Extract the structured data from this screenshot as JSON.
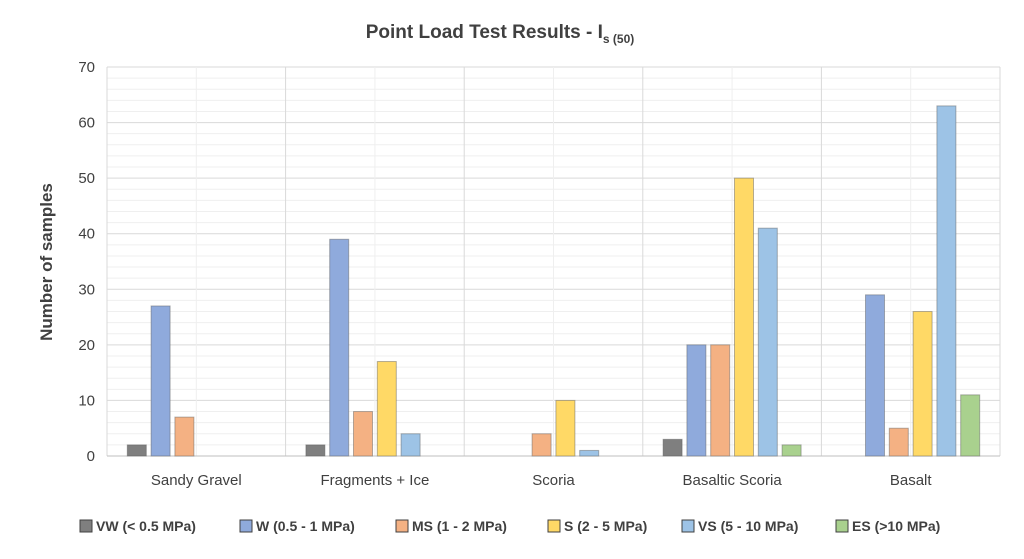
{
  "colors": {
    "VW": "#7f7f7f",
    "W": "#8faadc",
    "MS": "#f4b183",
    "S": "#ffd966",
    "VS": "#9dc3e6",
    "ES": "#a9d18e",
    "grid": "#d9d9d9",
    "text": "#404040"
  },
  "chart_data": {
    "type": "bar",
    "title": "Point Load Test Results - I",
    "title_subscript": "s (50)",
    "xlabel": "",
    "ylabel": "Number of samples",
    "ylim": [
      0,
      70
    ],
    "yticks": [
      0,
      10,
      20,
      30,
      40,
      50,
      60,
      70
    ],
    "grid": true,
    "legend_position": "bottom",
    "categories": [
      "Sandy Gravel",
      "Fragments + Ice",
      "Scoria",
      "Basaltic Scoria",
      "Basalt"
    ],
    "series": [
      {
        "key": "VW",
        "name": "VW (< 0.5 MPa)",
        "values": [
          2,
          2,
          0,
          3,
          0
        ]
      },
      {
        "key": "W",
        "name": "W (0.5 - 1 MPa)",
        "values": [
          27,
          39,
          0,
          20,
          29
        ]
      },
      {
        "key": "MS",
        "name": "MS (1 - 2 MPa)",
        "values": [
          7,
          8,
          4,
          20,
          5
        ]
      },
      {
        "key": "S",
        "name": "S (2 - 5 MPa)",
        "values": [
          0,
          17,
          10,
          50,
          26
        ]
      },
      {
        "key": "VS",
        "name": "VS (5 - 10 MPa)",
        "values": [
          0,
          4,
          1,
          41,
          63
        ]
      },
      {
        "key": "ES",
        "name": "ES (>10 MPa)",
        "values": [
          0,
          0,
          0,
          2,
          11
        ]
      }
    ]
  }
}
